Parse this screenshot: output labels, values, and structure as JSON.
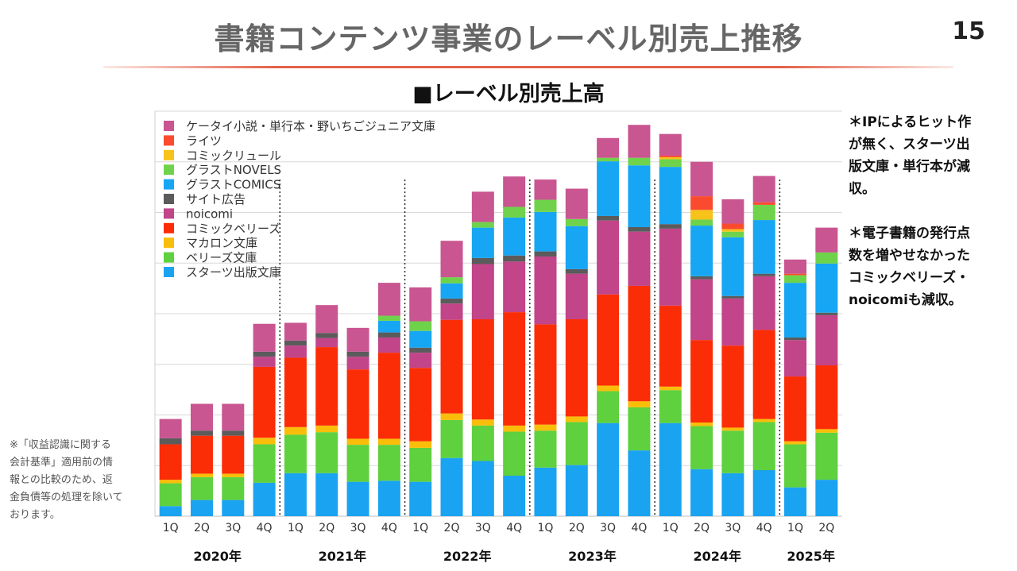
{
  "page": {
    "title": "書籍コンテンツ事業のレーベル別売上推移",
    "page_number": "15",
    "rule_color": "#e4624a"
  },
  "notes": {
    "note1": [
      "＊IPによるヒット作",
      "が無く、スターツ出",
      "版文庫・単行本が減",
      "収。"
    ],
    "note2": [
      "＊電子書籍の発行点",
      "数を増やせなかった",
      "コミックベリーズ・",
      "noicomiも減収。"
    ],
    "footnote": [
      "※「収益認識に関する",
      "会計基準」適用前の情",
      "報との比較のため、返",
      "金負債等の処理を除いて",
      "おります。"
    ]
  },
  "chart_data": {
    "type": "bar",
    "stacked": true,
    "title": "■レーベル別売上高",
    "categories": [
      "1Q",
      "2Q",
      "3Q",
      "4Q",
      "1Q",
      "2Q",
      "3Q",
      "4Q",
      "1Q",
      "2Q",
      "3Q",
      "4Q",
      "1Q",
      "2Q",
      "3Q",
      "4Q",
      "1Q",
      "2Q",
      "3Q",
      "4Q",
      "1Q",
      "2Q"
    ],
    "years": [
      {
        "label": "2020年",
        "start": 0,
        "end": 3
      },
      {
        "label": "2021年",
        "start": 4,
        "end": 7
      },
      {
        "label": "2022年",
        "start": 8,
        "end": 11
      },
      {
        "label": "2023年",
        "start": 12,
        "end": 15
      },
      {
        "label": "2024年",
        "start": 16,
        "end": 19
      },
      {
        "label": "2025年",
        "start": 20,
        "end": 21
      }
    ],
    "ylim": [
      0,
      8
    ],
    "grid": true,
    "legend_position": "top-left",
    "series": [
      {
        "name": "スターツ出版文庫",
        "color": "#1aa3f0",
        "values": [
          0.2,
          0.32,
          0.32,
          0.66,
          0.85,
          0.85,
          0.68,
          0.7,
          0.68,
          1.15,
          1.09,
          0.8,
          0.96,
          1.01,
          1.84,
          1.3,
          1.84,
          0.93,
          0.85,
          0.91,
          0.57,
          0.72
        ]
      },
      {
        "name": "ベリーズ文庫",
        "color": "#5fd03e",
        "values": [
          0.45,
          0.45,
          0.45,
          0.76,
          0.76,
          0.81,
          0.73,
          0.71,
          0.67,
          0.75,
          0.7,
          0.87,
          0.73,
          0.85,
          0.63,
          0.85,
          0.65,
          0.85,
          0.84,
          0.95,
          0.85,
          0.93
        ]
      },
      {
        "name": "マカロン文庫",
        "color": "#f8be0a",
        "values": [
          0.07,
          0.07,
          0.07,
          0.13,
          0.15,
          0.13,
          0.12,
          0.12,
          0.13,
          0.13,
          0.12,
          0.12,
          0.12,
          0.11,
          0.11,
          0.12,
          0.07,
          0.07,
          0.06,
          0.06,
          0.06,
          0.07
        ]
      },
      {
        "name": "コミックベリーズ",
        "color": "#fb2d06",
        "values": [
          0.7,
          0.75,
          0.75,
          1.4,
          1.37,
          1.55,
          1.37,
          1.7,
          1.45,
          1.85,
          1.98,
          2.24,
          1.98,
          1.92,
          1.8,
          2.28,
          1.6,
          1.63,
          1.62,
          1.76,
          1.28,
          1.26
        ]
      },
      {
        "name": "noicomi",
        "color": "#c24489",
        "values": [
          0,
          0,
          0,
          0.2,
          0.24,
          0.18,
          0.25,
          0.3,
          0.3,
          0.32,
          1.09,
          1.0,
          1.34,
          0.9,
          1.46,
          1.07,
          1.52,
          1.2,
          0.93,
          1.06,
          0.72,
          0.99
        ]
      },
      {
        "name": "サイト広告",
        "color": "#5b5b5b",
        "values": [
          0.12,
          0.1,
          0.1,
          0.1,
          0.1,
          0.1,
          0.1,
          0.1,
          0.1,
          0.1,
          0.12,
          0.12,
          0.1,
          0.09,
          0.09,
          0.09,
          0.09,
          0.06,
          0.05,
          0.05,
          0.05,
          0.05
        ]
      },
      {
        "name": "グラストCOMICS",
        "color": "#16a6f4",
        "values": [
          0,
          0,
          0,
          0,
          0,
          0,
          0,
          0.23,
          0.33,
          0.3,
          0.6,
          0.75,
          0.78,
          0.85,
          1.08,
          1.22,
          1.13,
          1.0,
          1.16,
          1.06,
          1.08,
          0.97
        ]
      },
      {
        "name": "グラストNOVELS",
        "color": "#6ed34a",
        "values": [
          0,
          0,
          0,
          0,
          0,
          0,
          0,
          0.1,
          0.19,
          0.12,
          0.11,
          0.21,
          0.24,
          0.14,
          0.07,
          0.15,
          0.15,
          0.12,
          0.11,
          0.3,
          0.15,
          0.22
        ]
      },
      {
        "name": "コミックリュール",
        "color": "#f7c21a",
        "values": [
          0,
          0,
          0,
          0,
          0,
          0,
          0,
          0,
          0,
          0,
          0,
          0,
          0,
          0,
          0,
          0,
          0.04,
          0.19,
          0.05,
          0,
          0,
          0
        ]
      },
      {
        "name": "ライツ",
        "color": "#fb4b2e",
        "values": [
          0,
          0,
          0,
          0,
          0,
          0,
          0,
          0,
          0,
          0,
          0,
          0,
          0,
          0,
          0,
          0,
          0.03,
          0.27,
          0.11,
          0.05,
          0.03,
          0
        ]
      },
      {
        "name": "ケータイ小説・単行本・野いちごジュニア文庫",
        "color": "#c95591",
        "values": [
          0.38,
          0.53,
          0.53,
          0.55,
          0.35,
          0.55,
          0.47,
          0.65,
          0.67,
          0.72,
          0.6,
          0.6,
          0.4,
          0.6,
          0.39,
          0.65,
          0.43,
          0.68,
          0.48,
          0.52,
          0.28,
          0.49
        ]
      }
    ]
  }
}
